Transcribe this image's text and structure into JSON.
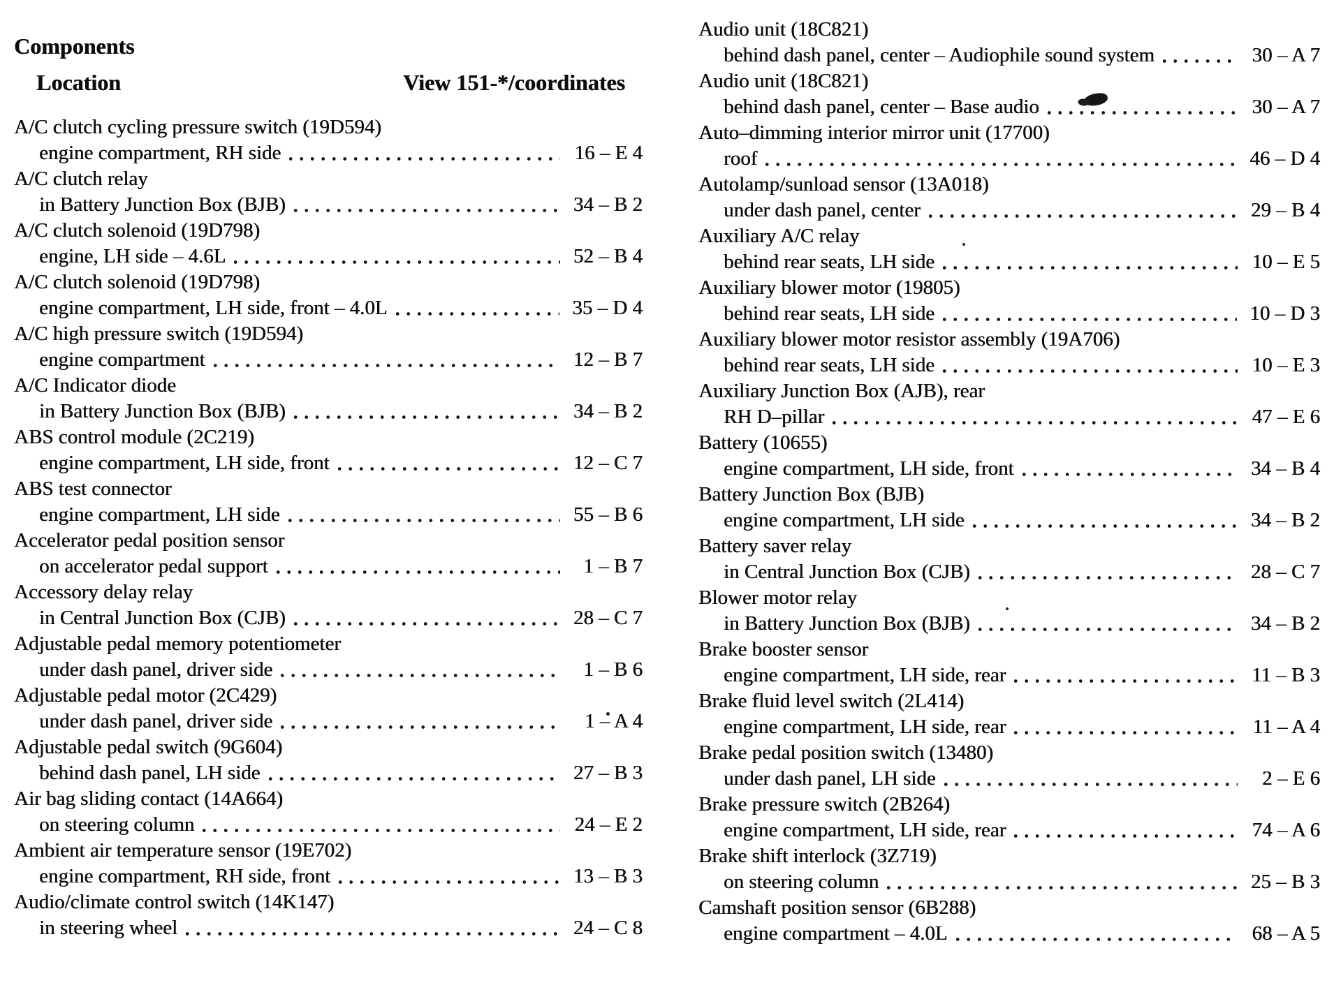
{
  "document": {
    "title": "Components",
    "column_headers": {
      "location": "Location",
      "view": "View 151-*/coordinates"
    },
    "left_column": [
      {
        "name": "A/C clutch cycling pressure switch (19D594)",
        "location": "engine compartment, RH side",
        "coord": "16 – E 4"
      },
      {
        "name": "A/C clutch relay",
        "location": "in Battery Junction Box (BJB)",
        "coord": "34 – B 2"
      },
      {
        "name": "A/C clutch solenoid (19D798)",
        "location": "engine, LH side – 4.6L",
        "coord": "52 – B 4"
      },
      {
        "name": "A/C clutch solenoid (19D798)",
        "location": "engine compartment, LH side, front – 4.0L",
        "coord": "35 – D 4"
      },
      {
        "name": "A/C high pressure switch (19D594)",
        "location": "engine compartment",
        "coord": "12 – B 7"
      },
      {
        "name": "A/C Indicator diode",
        "location": "in Battery Junction Box (BJB)",
        "coord": "34 – B 2"
      },
      {
        "name": "ABS control module (2C219)",
        "location": "engine compartment, LH side, front",
        "coord": "12 – C 7"
      },
      {
        "name": "ABS test connector",
        "location": "engine compartment, LH side",
        "coord": "55 – B 6"
      },
      {
        "name": "Accelerator pedal position sensor",
        "location": "on accelerator pedal support",
        "coord": "1 – B 7"
      },
      {
        "name": "Accessory delay relay",
        "location": "in Central Junction Box (CJB)",
        "coord": "28 – C 7"
      },
      {
        "name": "Adjustable pedal memory potentiometer",
        "location": "under dash panel, driver side",
        "coord": "1 – B 6"
      },
      {
        "name": "Adjustable pedal motor (2C429)",
        "location": "under dash panel, driver side",
        "coord": "1 – A 4"
      },
      {
        "name": "Adjustable pedal switch (9G604)",
        "location": "behind dash panel, LH side",
        "coord": "27 – B 3"
      },
      {
        "name": "Air bag sliding contact (14A664)",
        "location": "on steering column",
        "coord": "24 – E 2"
      },
      {
        "name": "Ambient air temperature sensor (19E702)",
        "location": "engine compartment, RH side, front",
        "coord": "13 – B 3"
      },
      {
        "name": "Audio/climate control switch (14K147)",
        "location": "in steering wheel",
        "coord": "24 – C 8"
      }
    ],
    "right_column": [
      {
        "name": "Audio unit (18C821)",
        "location": "behind dash panel, center – Audiophile sound system",
        "coord": "30 – A 7"
      },
      {
        "name": "Audio unit (18C821)",
        "location": "behind dash panel, center – Base audio",
        "coord": "30 – A 7"
      },
      {
        "name": "Auto–dimming interior mirror unit (17700)",
        "location": "roof",
        "coord": "46 – D 4"
      },
      {
        "name": "Autolamp/sunload sensor (13A018)",
        "location": "under dash panel, center",
        "coord": "29 – B 4"
      },
      {
        "name": "Auxiliary A/C relay",
        "location": "behind rear seats, LH side",
        "coord": "10 – E 5"
      },
      {
        "name": "Auxiliary blower motor (19805)",
        "location": "behind rear seats, LH side",
        "coord": "10 – D 3"
      },
      {
        "name": "Auxiliary blower motor resistor assembly (19A706)",
        "location": "behind rear seats, LH side",
        "coord": "10 – E 3"
      },
      {
        "name": "Auxiliary Junction Box (AJB), rear",
        "location": "RH D–pillar",
        "coord": "47 – E 6"
      },
      {
        "name": "Battery (10655)",
        "location": "engine compartment, LH side, front",
        "coord": "34 – B 4"
      },
      {
        "name": "Battery Junction Box (BJB)",
        "location": "engine compartment, LH side",
        "coord": "34 – B 2"
      },
      {
        "name": "Battery saver relay",
        "location": "in Central Junction Box (CJB)",
        "coord": "28 – C 7"
      },
      {
        "name": "Blower motor relay",
        "location": "in Battery Junction Box (BJB)",
        "coord": "34 – B 2"
      },
      {
        "name": "Brake booster sensor",
        "location": "engine compartment, LH side, rear",
        "coord": "11 – B 3"
      },
      {
        "name": "Brake fluid level switch (2L414)",
        "location": "engine compartment, LH side, rear",
        "coord": "11 – A 4"
      },
      {
        "name": "Brake pedal position switch (13480)",
        "location": "under dash panel, LH side",
        "coord": "2 – E 6"
      },
      {
        "name": "Brake pressure switch (2B264)",
        "location": "engine compartment, LH side, rear",
        "coord": "74 – A 6"
      },
      {
        "name": "Brake shift interlock (3Z719)",
        "location": "on steering column",
        "coord": "25 – B 3"
      },
      {
        "name": "Camshaft position sensor (6B288)",
        "location": "engine compartment – 4.0L",
        "coord": "68 – A 5"
      }
    ]
  },
  "colors": {
    "ink": "#0d0d0d",
    "paper": "#ffffff"
  }
}
